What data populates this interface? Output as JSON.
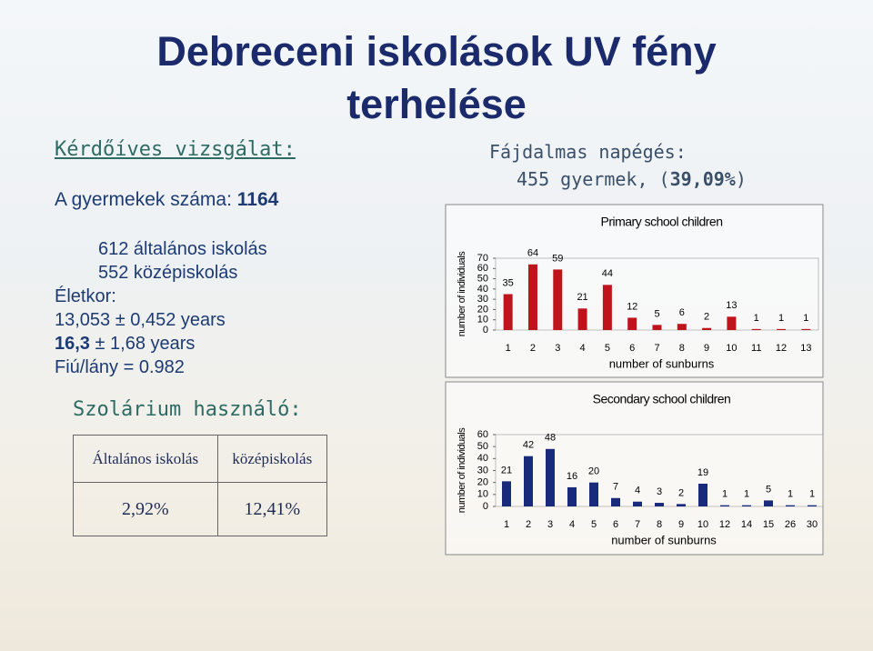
{
  "title": "Debreceni iskolások UV fény terhelése",
  "survey": {
    "heading": "Kérdőíves vizsgálat:",
    "count_label": "A gyermekek száma: ",
    "count": "1164",
    "lines": [
      "612 általános iskolás",
      "552 középiskolás"
    ],
    "age_heading": "Életkor:",
    "age_primary": "13,053 ± 0,452 years",
    "age_secondary_bold": "16,3",
    "age_secondary_rest": " ± 1,68 years",
    "ratio": "Fiú/lány = 0.982"
  },
  "solarium": {
    "heading": "Szolárium használó:",
    "table": {
      "headers": [
        "Általános iskolás",
        "középiskolás"
      ],
      "rows": [
        [
          "2,92%",
          "12,41%"
        ]
      ]
    }
  },
  "sunburn": {
    "heading": "Fájdalmas napégés:",
    "prefix": "455 gyermek, (",
    "bold": "39,09%",
    "suffix": ")"
  },
  "chart_data": [
    {
      "type": "bar",
      "title": "Primary school children",
      "x_label": "number of sunburns",
      "y_label": "number of individuals",
      "categories": [
        "1",
        "2",
        "3",
        "4",
        "5",
        "6",
        "7",
        "8",
        "9",
        "10",
        "11",
        "12",
        "13"
      ],
      "values": [
        35,
        64,
        59,
        21,
        44,
        12,
        5,
        6,
        2,
        13,
        1,
        1,
        1
      ],
      "color": "#c0141c",
      "ylim": [
        0,
        70
      ],
      "yticks": [
        0,
        10,
        20,
        30,
        40,
        50,
        60,
        70
      ]
    },
    {
      "type": "bar",
      "title": "Secondary school children",
      "x_label": "number of sunburns",
      "y_label": "number of individuals",
      "categories": [
        "1",
        "2",
        "3",
        "4",
        "5",
        "6",
        "7",
        "8",
        "9",
        "10",
        "12",
        "14",
        "15",
        "26",
        "30"
      ],
      "values": [
        21,
        42,
        48,
        16,
        20,
        7,
        4,
        3,
        2,
        19,
        1,
        1,
        5,
        1,
        1
      ],
      "color": "#1a2a7a",
      "ylim": [
        0,
        60
      ],
      "yticks": [
        0,
        10,
        20,
        30,
        40,
        50,
        60
      ]
    }
  ]
}
